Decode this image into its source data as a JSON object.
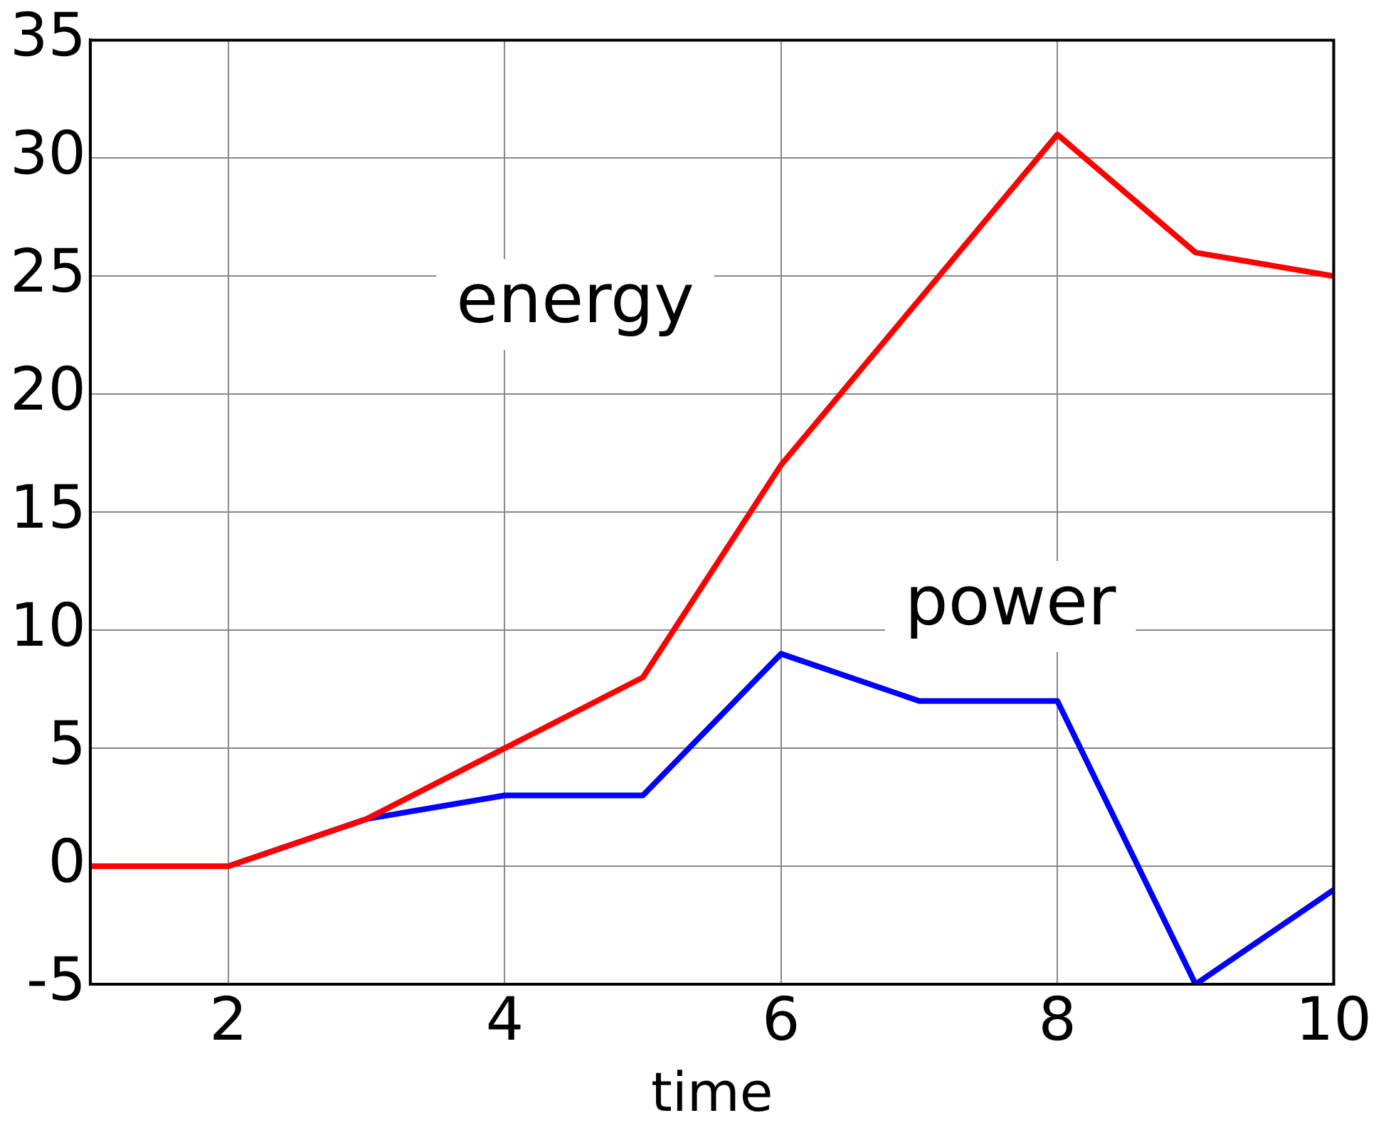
{
  "chart_data": {
    "type": "line",
    "xlabel": "time",
    "x": [
      1,
      2,
      3,
      4,
      5,
      6,
      7,
      8,
      9,
      10
    ],
    "series": [
      {
        "name": "energy",
        "color": "#ff0000",
        "values": [
          0,
          0,
          2,
          5,
          8,
          17,
          24,
          31,
          26,
          25
        ]
      },
      {
        "name": "power",
        "color": "#0000ff",
        "values": [
          0,
          0,
          2,
          3,
          3,
          9,
          7,
          7,
          -5,
          -1
        ]
      }
    ],
    "xlim": [
      1,
      10
    ],
    "xticks": [
      2,
      4,
      6,
      8,
      10
    ],
    "ylim": [
      -5,
      35
    ],
    "yticks": [
      -5,
      0,
      5,
      10,
      15,
      20,
      25,
      30,
      35
    ],
    "grid": true,
    "legend": false,
    "marker": "none",
    "line_style": "solid"
  }
}
